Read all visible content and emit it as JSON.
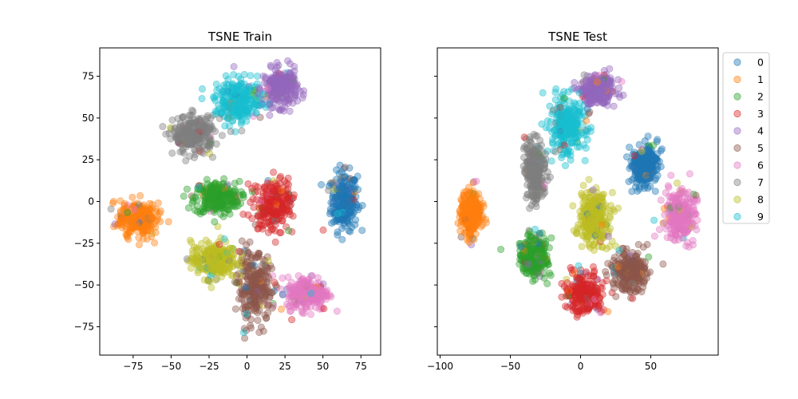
{
  "chart_data": [
    {
      "type": "scatter",
      "title": "TSNE Train",
      "xlabel": "",
      "ylabel": "",
      "xlim": [
        -97,
        88
      ],
      "ylim": [
        -92,
        92
      ],
      "xticks": [
        -75,
        -50,
        -25,
        0,
        25,
        50,
        75
      ],
      "xtick_labels": [
        "−75",
        "−50",
        "−25",
        "0",
        "25",
        "50",
        "75"
      ],
      "yticks": [
        -75,
        -50,
        -25,
        0,
        25,
        50,
        75
      ],
      "ytick_labels": [
        "−75",
        "−50",
        "−25",
        "0",
        "25",
        "50",
        "75"
      ],
      "grid": false,
      "clusters": [
        {
          "label": "0",
          "cx": 64,
          "cy": 0,
          "sx": 7,
          "sy": 14
        },
        {
          "label": "1",
          "cx": -72,
          "cy": -10,
          "sx": 10,
          "sy": 9
        },
        {
          "label": "2",
          "cx": -20,
          "cy": 2,
          "sx": 12,
          "sy": 8
        },
        {
          "label": "3",
          "cx": 17,
          "cy": -2,
          "sx": 10,
          "sy": 12
        },
        {
          "label": "4",
          "cx": 22,
          "cy": 68,
          "sx": 9,
          "sy": 9
        },
        {
          "label": "5",
          "cx": 5,
          "cy": -52,
          "sx": 9,
          "sy": 16
        },
        {
          "label": "6",
          "cx": 40,
          "cy": -55,
          "sx": 11,
          "sy": 8
        },
        {
          "label": "7",
          "cx": -35,
          "cy": 40,
          "sx": 11,
          "sy": 9
        },
        {
          "label": "8",
          "cx": -22,
          "cy": -35,
          "sx": 12,
          "sy": 9
        },
        {
          "label": "9",
          "cx": -5,
          "cy": 60,
          "sx": 13,
          "sy": 10
        }
      ]
    },
    {
      "type": "scatter",
      "title": "TSNE Test",
      "xlabel": "",
      "ylabel": "",
      "xlim": [
        -102,
        98
      ],
      "ylim": [
        -92,
        92
      ],
      "xticks": [
        -100,
        -50,
        0,
        50
      ],
      "xtick_labels": [
        "−100",
        "−50",
        "0",
        "50"
      ],
      "yticks": [
        -75,
        -50,
        -25,
        0,
        25,
        50,
        75
      ],
      "ytick_labels": [],
      "grid": false,
      "legend": "upper-right-outside",
      "clusters": [
        {
          "label": "0",
          "cx": 45,
          "cy": 22,
          "sx": 8,
          "sy": 10
        },
        {
          "label": "1",
          "cx": -78,
          "cy": -7,
          "sx": 6,
          "sy": 11
        },
        {
          "label": "2",
          "cx": -33,
          "cy": -33,
          "sx": 8,
          "sy": 9
        },
        {
          "label": "3",
          "cx": 3,
          "cy": -55,
          "sx": 10,
          "sy": 9
        },
        {
          "label": "4",
          "cx": 12,
          "cy": 67,
          "sx": 10,
          "sy": 8
        },
        {
          "label": "5",
          "cx": 35,
          "cy": -42,
          "sx": 10,
          "sy": 9
        },
        {
          "label": "6",
          "cx": 70,
          "cy": -8,
          "sx": 9,
          "sy": 12
        },
        {
          "label": "7",
          "cx": -32,
          "cy": 18,
          "sx": 6,
          "sy": 15
        },
        {
          "label": "8",
          "cx": 10,
          "cy": -10,
          "sx": 9,
          "sy": 13
        },
        {
          "label": "9",
          "cx": -10,
          "cy": 45,
          "sx": 10,
          "sy": 13
        }
      ]
    }
  ],
  "legend": {
    "entries": [
      "0",
      "1",
      "2",
      "3",
      "4",
      "5",
      "6",
      "7",
      "8",
      "9"
    ]
  },
  "colors": [
    "#1f77b4",
    "#ff7f0e",
    "#2ca02c",
    "#d62728",
    "#9467bd",
    "#8c564b",
    "#e377c2",
    "#7f7f7f",
    "#bcbd22",
    "#17becf"
  ]
}
